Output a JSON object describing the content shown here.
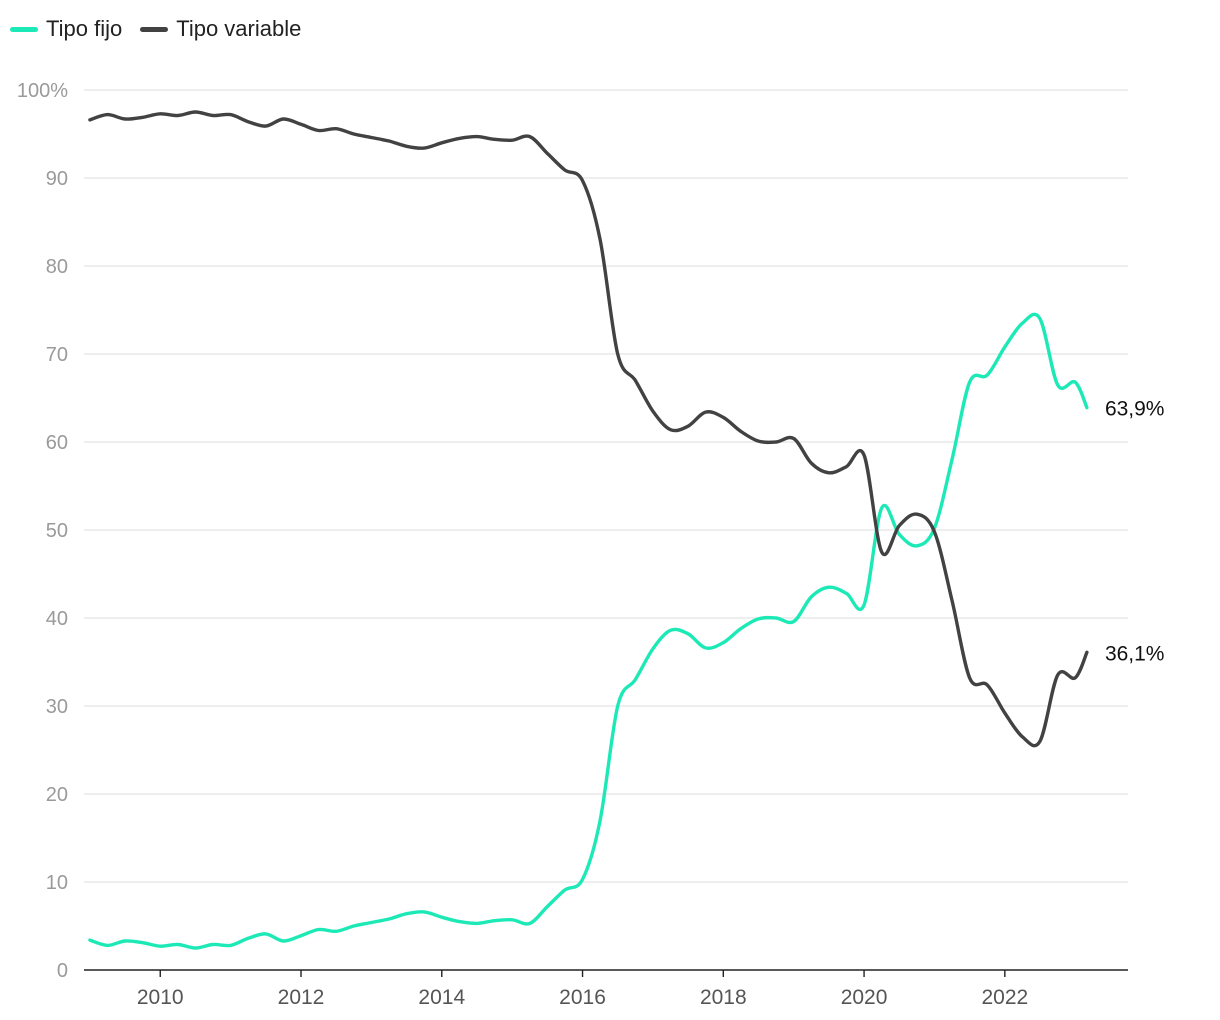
{
  "chart_data": {
    "type": "line",
    "title": "",
    "xlabel": "",
    "ylabel": "",
    "ylim": [
      0,
      100
    ],
    "xlim": [
      "2008-12",
      "2023-10"
    ],
    "grid": true,
    "legend_position": "top-left",
    "y_ticks": [
      {
        "value": 0,
        "label": "0"
      },
      {
        "value": 10,
        "label": "10"
      },
      {
        "value": 20,
        "label": "20"
      },
      {
        "value": 30,
        "label": "30"
      },
      {
        "value": 40,
        "label": "40"
      },
      {
        "value": 50,
        "label": "50"
      },
      {
        "value": 60,
        "label": "60"
      },
      {
        "value": 70,
        "label": "70"
      },
      {
        "value": 80,
        "label": "80"
      },
      {
        "value": 90,
        "label": "90"
      },
      {
        "value": 100,
        "label": "100%"
      }
    ],
    "x_ticks": [
      {
        "value": "2010-01",
        "label": "2010"
      },
      {
        "value": "2012-01",
        "label": "2012"
      },
      {
        "value": "2014-01",
        "label": "2014"
      },
      {
        "value": "2016-01",
        "label": "2016"
      },
      {
        "value": "2018-01",
        "label": "2018"
      },
      {
        "value": "2020-01",
        "label": "2020"
      },
      {
        "value": "2022-01",
        "label": "2022"
      }
    ],
    "series": [
      {
        "name": "Tipo fijo",
        "color": "#1de9b6",
        "end_label": "63,9%",
        "points": [
          [
            "2009-01",
            3.4
          ],
          [
            "2009-04",
            2.8
          ],
          [
            "2009-07",
            3.3
          ],
          [
            "2009-10",
            3.1
          ],
          [
            "2010-01",
            2.7
          ],
          [
            "2010-04",
            2.9
          ],
          [
            "2010-07",
            2.5
          ],
          [
            "2010-10",
            2.9
          ],
          [
            "2011-01",
            2.8
          ],
          [
            "2011-04",
            3.6
          ],
          [
            "2011-07",
            4.1
          ],
          [
            "2011-10",
            3.3
          ],
          [
            "2012-01",
            3.9
          ],
          [
            "2012-04",
            4.6
          ],
          [
            "2012-07",
            4.4
          ],
          [
            "2012-10",
            5.0
          ],
          [
            "2013-01",
            5.4
          ],
          [
            "2013-04",
            5.8
          ],
          [
            "2013-07",
            6.4
          ],
          [
            "2013-10",
            6.6
          ],
          [
            "2014-01",
            6.0
          ],
          [
            "2014-04",
            5.5
          ],
          [
            "2014-07",
            5.3
          ],
          [
            "2014-10",
            5.6
          ],
          [
            "2015-01",
            5.7
          ],
          [
            "2015-04",
            5.3
          ],
          [
            "2015-07",
            7.2
          ],
          [
            "2015-10",
            9.1
          ],
          [
            "2016-01",
            10.3
          ],
          [
            "2016-04",
            17.0
          ],
          [
            "2016-07",
            30.0
          ],
          [
            "2016-10",
            33.0
          ],
          [
            "2017-01",
            36.5
          ],
          [
            "2017-04",
            38.6
          ],
          [
            "2017-07",
            38.2
          ],
          [
            "2017-10",
            36.6
          ],
          [
            "2018-01",
            37.2
          ],
          [
            "2018-04",
            38.8
          ],
          [
            "2018-07",
            39.9
          ],
          [
            "2018-10",
            40.0
          ],
          [
            "2019-01",
            39.6
          ],
          [
            "2019-04",
            42.4
          ],
          [
            "2019-07",
            43.5
          ],
          [
            "2019-10",
            42.8
          ],
          [
            "2020-01",
            41.5
          ],
          [
            "2020-04",
            52.5
          ],
          [
            "2020-07",
            49.5
          ],
          [
            "2020-10",
            48.2
          ],
          [
            "2021-01",
            50.2
          ],
          [
            "2021-04",
            58.0
          ],
          [
            "2021-07",
            66.8
          ],
          [
            "2021-10",
            67.6
          ],
          [
            "2022-01",
            70.8
          ],
          [
            "2022-04",
            73.5
          ],
          [
            "2022-07",
            74.0
          ],
          [
            "2022-10",
            66.5
          ],
          [
            "2023-01",
            66.8
          ],
          [
            "2023-03",
            63.9
          ]
        ]
      },
      {
        "name": "Tipo variable",
        "color": "#424242",
        "end_label": "36,1%",
        "points": [
          [
            "2009-01",
            96.6
          ],
          [
            "2009-04",
            97.2
          ],
          [
            "2009-07",
            96.7
          ],
          [
            "2009-10",
            96.9
          ],
          [
            "2010-01",
            97.3
          ],
          [
            "2010-04",
            97.1
          ],
          [
            "2010-07",
            97.5
          ],
          [
            "2010-10",
            97.1
          ],
          [
            "2011-01",
            97.2
          ],
          [
            "2011-04",
            96.4
          ],
          [
            "2011-07",
            95.9
          ],
          [
            "2011-10",
            96.7
          ],
          [
            "2012-01",
            96.1
          ],
          [
            "2012-04",
            95.4
          ],
          [
            "2012-07",
            95.6
          ],
          [
            "2012-10",
            95.0
          ],
          [
            "2013-01",
            94.6
          ],
          [
            "2013-04",
            94.2
          ],
          [
            "2013-07",
            93.6
          ],
          [
            "2013-10",
            93.4
          ],
          [
            "2014-01",
            94.0
          ],
          [
            "2014-04",
            94.5
          ],
          [
            "2014-07",
            94.7
          ],
          [
            "2014-10",
            94.4
          ],
          [
            "2015-01",
            94.3
          ],
          [
            "2015-04",
            94.7
          ],
          [
            "2015-07",
            92.8
          ],
          [
            "2015-10",
            90.9
          ],
          [
            "2016-01",
            89.7
          ],
          [
            "2016-04",
            83.0
          ],
          [
            "2016-07",
            70.0
          ],
          [
            "2016-10",
            67.0
          ],
          [
            "2017-01",
            63.5
          ],
          [
            "2017-04",
            61.4
          ],
          [
            "2017-07",
            61.8
          ],
          [
            "2017-10",
            63.4
          ],
          [
            "2018-01",
            62.8
          ],
          [
            "2018-04",
            61.2
          ],
          [
            "2018-07",
            60.1
          ],
          [
            "2018-10",
            60.0
          ],
          [
            "2019-01",
            60.4
          ],
          [
            "2019-04",
            57.6
          ],
          [
            "2019-07",
            56.5
          ],
          [
            "2019-10",
            57.2
          ],
          [
            "2020-01",
            58.5
          ],
          [
            "2020-04",
            47.5
          ],
          [
            "2020-07",
            50.5
          ],
          [
            "2020-10",
            51.8
          ],
          [
            "2021-01",
            49.8
          ],
          [
            "2021-04",
            42.0
          ],
          [
            "2021-07",
            33.2
          ],
          [
            "2021-10",
            32.4
          ],
          [
            "2022-01",
            29.2
          ],
          [
            "2022-04",
            26.5
          ],
          [
            "2022-07",
            26.0
          ],
          [
            "2022-10",
            33.5
          ],
          [
            "2023-01",
            33.2
          ],
          [
            "2023-03",
            36.1
          ]
        ]
      }
    ]
  }
}
